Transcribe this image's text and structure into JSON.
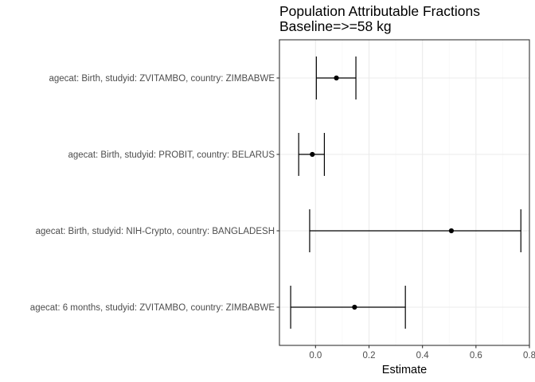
{
  "chart_data": {
    "type": "forest",
    "title_lines": [
      "Population Attributable Fractions",
      "Baseline=>=58 kg"
    ],
    "xlabel": "Estimate",
    "ylabel": "",
    "xlim": [
      -0.135,
      0.8
    ],
    "x_ticks": [
      0.0,
      0.2,
      0.4,
      0.6,
      0.8
    ],
    "x_tick_labels": [
      "0.0",
      "0.2",
      "0.4",
      "0.6",
      "0.8"
    ],
    "grid": true,
    "theme": "bw",
    "colors": {
      "mark": "#000000",
      "grid_major": "#ebebeb",
      "grid_minor": "#f5f5f5",
      "panel_border": "#333333",
      "tick_label": "#4d4d4d"
    },
    "rows": [
      {
        "label": "agecat: Birth, studyid: ZVITAMBO, country: ZIMBABWE",
        "estimate": 0.078,
        "lower": 0.003,
        "upper": 0.151
      },
      {
        "label": "agecat: Birth, studyid: PROBIT, country: BELARUS",
        "estimate": -0.012,
        "lower": -0.063,
        "upper": 0.033
      },
      {
        "label": "agecat: Birth, studyid: NIH-Crypto, country: BANGLADESH",
        "estimate": 0.508,
        "lower": -0.022,
        "upper": 0.768
      },
      {
        "label": "agecat: 6 months, studyid: ZVITAMBO, country: ZIMBABWE",
        "estimate": 0.146,
        "lower": -0.093,
        "upper": 0.336
      }
    ]
  }
}
